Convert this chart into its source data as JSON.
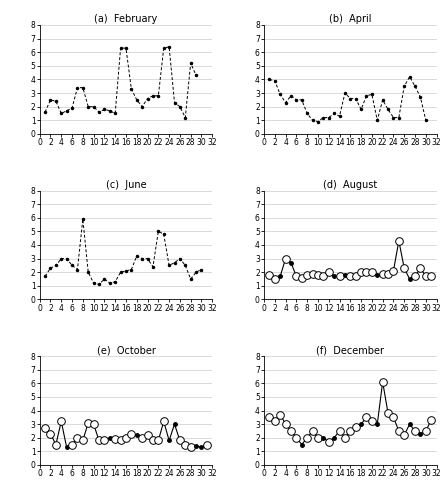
{
  "february": {
    "title": "(a)  February",
    "x": [
      1,
      2,
      3,
      4,
      5,
      6,
      7,
      8,
      9,
      10,
      11,
      12,
      13,
      14,
      15,
      16,
      17,
      18,
      19,
      20,
      21,
      22,
      23,
      24,
      25,
      26,
      27,
      28,
      29
    ],
    "y": [
      1.6,
      2.5,
      2.4,
      1.5,
      1.7,
      1.9,
      3.4,
      3.4,
      2.0,
      2.0,
      1.6,
      1.8,
      1.7,
      1.5,
      6.3,
      6.3,
      3.3,
      2.5,
      2.0,
      2.6,
      2.8,
      2.8,
      6.3,
      6.4,
      2.3,
      2.0,
      1.2,
      5.2,
      4.3
    ],
    "style": "dashed_filled"
  },
  "april": {
    "title": "(b)  April",
    "x": [
      1,
      2,
      3,
      4,
      5,
      6,
      7,
      8,
      9,
      10,
      11,
      12,
      13,
      14,
      15,
      16,
      17,
      18,
      19,
      20,
      21,
      22,
      23,
      24,
      25,
      26,
      27,
      28,
      29,
      30
    ],
    "y": [
      4.0,
      3.9,
      2.9,
      2.3,
      2.8,
      2.5,
      2.5,
      1.5,
      1.0,
      0.9,
      1.2,
      1.2,
      1.5,
      1.3,
      3.0,
      2.6,
      2.6,
      1.8,
      2.8,
      2.9,
      1.0,
      2.5,
      1.8,
      1.2,
      1.2,
      3.5,
      4.2,
      3.5,
      2.7,
      1.0
    ],
    "style": "dashed_filled"
  },
  "june": {
    "title": "(c)  June",
    "x": [
      1,
      2,
      3,
      4,
      5,
      6,
      7,
      8,
      9,
      10,
      11,
      12,
      13,
      14,
      15,
      16,
      17,
      18,
      19,
      20,
      21,
      22,
      23,
      24,
      25,
      26,
      27,
      28,
      29,
      30
    ],
    "y": [
      1.7,
      2.3,
      2.5,
      3.0,
      3.0,
      2.5,
      2.2,
      5.9,
      2.0,
      1.2,
      1.1,
      1.5,
      1.2,
      1.3,
      2.0,
      2.1,
      2.2,
      3.2,
      3.0,
      3.0,
      2.4,
      5.0,
      4.8,
      2.5,
      2.7,
      3.0,
      2.5,
      1.5,
      2.0,
      2.2
    ],
    "style": "dashed_filled"
  },
  "august": {
    "title": "(d)  August",
    "x": [
      1,
      2,
      3,
      4,
      5,
      6,
      7,
      8,
      9,
      10,
      11,
      12,
      13,
      14,
      15,
      16,
      17,
      18,
      19,
      20,
      21,
      22,
      23,
      24,
      25,
      26,
      27,
      28,
      29,
      30,
      31
    ],
    "y": [
      1.8,
      1.5,
      1.7,
      3.0,
      2.7,
      1.7,
      1.6,
      1.8,
      1.9,
      1.8,
      1.7,
      2.0,
      1.7,
      1.7,
      1.8,
      1.7,
      1.7,
      2.0,
      2.0,
      2.0,
      1.8,
      1.9,
      1.9,
      2.1,
      4.3,
      2.3,
      1.5,
      1.7,
      2.3,
      1.7,
      1.7
    ],
    "imputed": [
      3,
      5,
      13,
      15,
      21,
      27
    ],
    "style": "solid_open"
  },
  "october": {
    "title": "(e)  October",
    "x": [
      1,
      2,
      3,
      4,
      5,
      6,
      7,
      8,
      9,
      10,
      11,
      12,
      13,
      14,
      15,
      16,
      17,
      18,
      19,
      20,
      21,
      22,
      23,
      24,
      25,
      26,
      27,
      28,
      29,
      30,
      31
    ],
    "y": [
      2.7,
      2.3,
      1.5,
      3.2,
      1.3,
      1.5,
      2.0,
      1.8,
      3.1,
      3.0,
      1.8,
      1.8,
      2.0,
      1.9,
      1.8,
      2.0,
      2.3,
      2.2,
      2.0,
      2.2,
      1.8,
      1.8,
      3.2,
      1.8,
      3.0,
      1.8,
      1.5,
      1.3,
      1.4,
      1.3,
      1.5
    ],
    "imputed": [
      5,
      13,
      18,
      24,
      25,
      29,
      30
    ],
    "style": "solid_open"
  },
  "december": {
    "title": "(f)  December",
    "x": [
      1,
      2,
      3,
      4,
      5,
      6,
      7,
      8,
      9,
      10,
      11,
      12,
      13,
      14,
      15,
      16,
      17,
      18,
      19,
      20,
      21,
      22,
      23,
      24,
      25,
      26,
      27,
      28,
      29,
      30,
      31
    ],
    "y": [
      3.5,
      3.2,
      3.7,
      3.0,
      2.5,
      2.0,
      1.5,
      2.0,
      2.5,
      2.0,
      2.0,
      1.7,
      2.0,
      2.5,
      2.0,
      2.5,
      2.8,
      3.0,
      3.5,
      3.2,
      3.0,
      6.1,
      3.8,
      3.5,
      2.5,
      2.2,
      3.0,
      2.5,
      2.3,
      2.5,
      3.3
    ],
    "imputed": [
      7,
      11,
      13,
      18,
      21,
      27,
      29
    ],
    "style": "solid_open"
  },
  "ylim": [
    0,
    8
  ],
  "yticks": [
    0,
    1,
    2,
    3,
    4,
    5,
    6,
    7,
    8
  ],
  "xlim": [
    0,
    32
  ],
  "xticks": [
    0,
    2,
    4,
    6,
    8,
    10,
    12,
    14,
    16,
    18,
    20,
    22,
    24,
    26,
    28,
    30,
    32
  ],
  "marker_observed_size": 5.5,
  "marker_imputed_size": 2.5,
  "linecolor": "black",
  "background_color": "#ffffff",
  "grid_color": "#cccccc"
}
